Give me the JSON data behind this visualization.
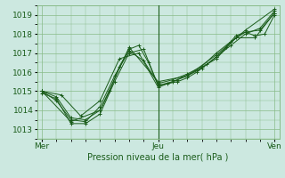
{
  "xlabel": "Pression niveau de la mer( hPa )",
  "x_ticks_labels": [
    "Mer",
    "Jeu",
    "Ven"
  ],
  "x_ticks_pos": [
    0,
    24,
    48
  ],
  "ylim": [
    1012.5,
    1019.5
  ],
  "yticks": [
    1013,
    1014,
    1015,
    1016,
    1017,
    1018,
    1019
  ],
  "xlim": [
    -1,
    49
  ],
  "bg_color": "#cce8e0",
  "grid_color": "#88bb88",
  "line_color": "#1a5c1a",
  "marker": "+",
  "lines": [
    [
      0,
      1014.9,
      3,
      1014.6,
      6,
      1013.3,
      9,
      1013.3,
      12,
      1013.8,
      15,
      1015.5,
      18,
      1017.0,
      21,
      1017.2,
      24,
      1015.3,
      27,
      1015.5,
      30,
      1015.8,
      33,
      1016.2,
      36,
      1016.8,
      39,
      1017.4,
      42,
      1018.0,
      45,
      1018.3,
      48,
      1019.2
    ],
    [
      0,
      1015.0,
      3,
      1014.5,
      6,
      1013.5,
      9,
      1013.4,
      12,
      1014.2,
      15,
      1015.8,
      18,
      1017.1,
      21,
      1016.6,
      24,
      1015.4,
      27,
      1015.6,
      30,
      1015.9,
      33,
      1016.3,
      36,
      1017.0,
      39,
      1017.6,
      42,
      1018.1,
      45,
      1018.2,
      48,
      1019.1
    ],
    [
      0,
      1015.0,
      6,
      1013.4,
      12,
      1014.0,
      18,
      1017.3,
      24,
      1015.5,
      30,
      1015.8,
      36,
      1016.9,
      42,
      1018.2,
      48,
      1019.3
    ],
    [
      0,
      1015.0,
      4,
      1014.8,
      8,
      1013.7,
      12,
      1014.5,
      16,
      1016.7,
      20,
      1017.0,
      24,
      1015.2,
      28,
      1015.6,
      32,
      1016.1,
      36,
      1016.7,
      40,
      1017.8,
      44,
      1017.8,
      48,
      1019.1
    ],
    [
      0,
      1015.0,
      3,
      1014.7,
      6,
      1013.6,
      9,
      1013.5,
      12,
      1014.0,
      14,
      1015.0,
      16,
      1016.3,
      18,
      1017.2,
      20,
      1017.4,
      22,
      1016.5,
      24,
      1015.3,
      26,
      1015.4,
      28,
      1015.5,
      30,
      1015.7,
      32,
      1016.0,
      34,
      1016.4,
      36,
      1016.8,
      38,
      1017.3,
      40,
      1017.9,
      42,
      1018.1,
      44,
      1017.9,
      46,
      1018.0,
      48,
      1019.0
    ]
  ],
  "vline_x": 24,
  "vline_color": "#1a5c1a"
}
